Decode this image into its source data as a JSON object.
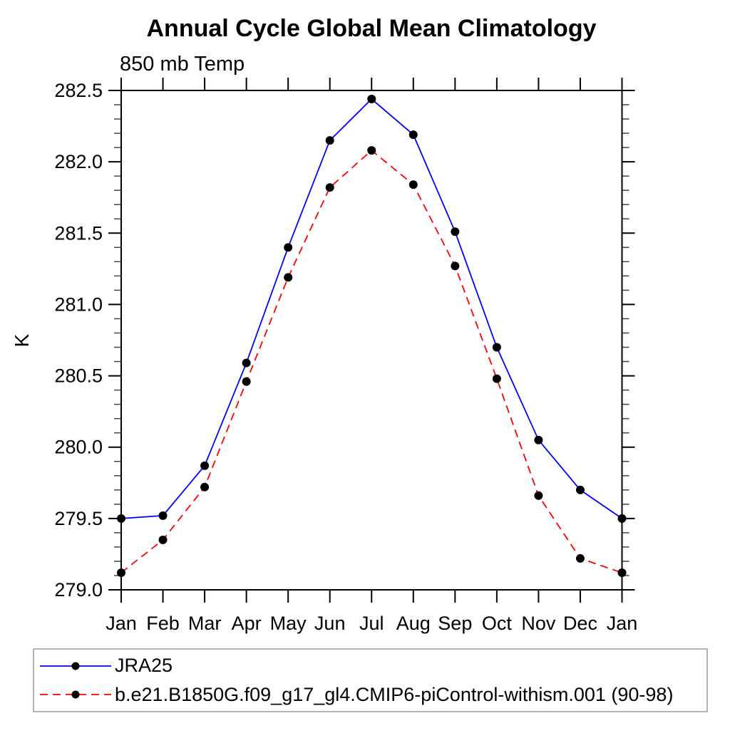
{
  "chart": {
    "title": "Annual Cycle Global Mean Climatology",
    "subtitle": "850 mb Temp",
    "ylabel": "K"
  },
  "chart_data": {
    "type": "line",
    "title": "Annual Cycle Global Mean Climatology",
    "subtitle": "850 mb Temp",
    "xlabel": "",
    "ylabel": "K",
    "categories": [
      "Jan",
      "Feb",
      "Mar",
      "Apr",
      "May",
      "Jun",
      "Jul",
      "Aug",
      "Sep",
      "Oct",
      "Nov",
      "Dec",
      "Jan"
    ],
    "series": [
      {
        "name": "JRA25",
        "color": "#0000ff",
        "line_style": "solid",
        "marker": "filled-circle",
        "marker_color": "#000000",
        "values": [
          279.5,
          279.52,
          279.87,
          280.59,
          281.4,
          282.15,
          282.44,
          282.19,
          281.51,
          280.7,
          280.05,
          279.7,
          279.5
        ]
      },
      {
        "name": "b.e21.B1850G.f09_g17_gl4.CMIP6-piControl-withism.001 (90-98)",
        "color": "#ff0000",
        "line_style": "dashed",
        "marker": "filled-circle",
        "marker_color": "#000000",
        "values": [
          279.12,
          279.35,
          279.72,
          280.46,
          281.19,
          281.82,
          282.08,
          281.84,
          281.27,
          280.48,
          279.66,
          279.22,
          279.12
        ]
      }
    ],
    "ylim": [
      279.0,
      282.5
    ],
    "ytick_major_step": 0.5,
    "ytick_minor_step": 0.1,
    "ytick_labels": [
      "279.0",
      "279.5",
      "280.0",
      "280.5",
      "281.0",
      "281.5",
      "282.0",
      "282.5"
    ],
    "grid": false,
    "frame": "box-with-outward-ticks",
    "legend_position": "bottom-left-box"
  },
  "legend": {
    "items": [
      {
        "label": "JRA25",
        "color": "#0000ff",
        "style": "solid"
      },
      {
        "label": "b.e21.B1850G.f09_g17_gl4.CMIP6-piControl-withism.001 (90-98)",
        "color": "#ff0000",
        "style": "dashed"
      }
    ]
  }
}
